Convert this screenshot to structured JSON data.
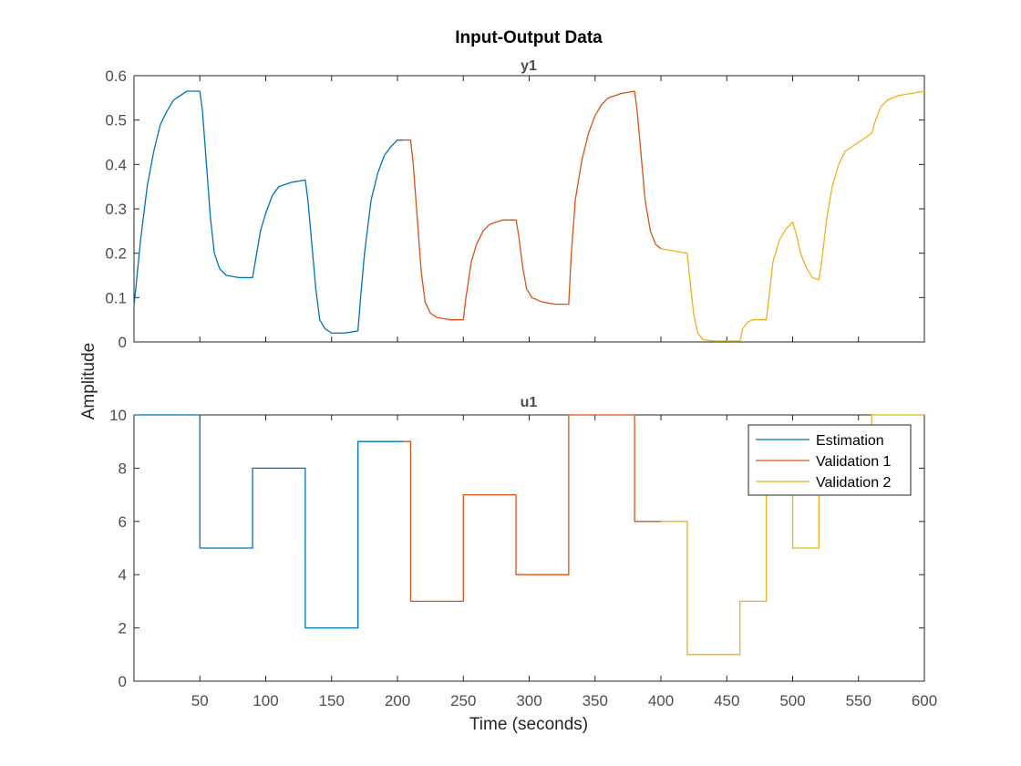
{
  "chart_data": {
    "type": "line",
    "title": "Input-Output Data",
    "xlabel": "Time (seconds)",
    "ylabel": "Amplitude",
    "legend": {
      "placement": "top-right of lower panel",
      "entries": [
        "Estimation",
        "Validation 1",
        "Validation 2"
      ]
    },
    "series_colors": {
      "Estimation": "#0072BD",
      "Validation 1": "#D95319",
      "Validation 2": "#EDB120"
    },
    "grid": false,
    "panels": [
      {
        "name": "y1",
        "xlim": [
          0,
          600
        ],
        "ylim": [
          0,
          0.6
        ],
        "xticks": [
          50,
          100,
          150,
          200,
          250,
          300,
          350,
          400,
          450,
          500,
          550,
          600
        ],
        "yticks": [
          0,
          0.1,
          0.2,
          0.3,
          0.4,
          0.5,
          0.6
        ],
        "ytick_labels": [
          "0",
          "0.1",
          "0.2",
          "0.3",
          "0.4",
          "0.5",
          "0.6"
        ],
        "show_xtick_labels": false,
        "series": [
          {
            "name": "Estimation",
            "points": [
              [
                0,
                0.08
              ],
              [
                5,
                0.23
              ],
              [
                10,
                0.35
              ],
              [
                15,
                0.43
              ],
              [
                20,
                0.49
              ],
              [
                25,
                0.52
              ],
              [
                30,
                0.545
              ],
              [
                35,
                0.555
              ],
              [
                40,
                0.565
              ],
              [
                45,
                0.565
              ],
              [
                50,
                0.565
              ],
              [
                52,
                0.52
              ],
              [
                55,
                0.4
              ],
              [
                58,
                0.28
              ],
              [
                61,
                0.2
              ],
              [
                65,
                0.165
              ],
              [
                70,
                0.15
              ],
              [
                80,
                0.145
              ],
              [
                90,
                0.145
              ],
              [
                92,
                0.18
              ],
              [
                96,
                0.25
              ],
              [
                100,
                0.29
              ],
              [
                105,
                0.33
              ],
              [
                110,
                0.35
              ],
              [
                120,
                0.36
              ],
              [
                130,
                0.365
              ],
              [
                132,
                0.32
              ],
              [
                135,
                0.22
              ],
              [
                138,
                0.12
              ],
              [
                141,
                0.05
              ],
              [
                145,
                0.03
              ],
              [
                150,
                0.02
              ],
              [
                160,
                0.02
              ],
              [
                170,
                0.025
              ],
              [
                172,
                0.1
              ],
              [
                175,
                0.2
              ],
              [
                180,
                0.32
              ],
              [
                185,
                0.38
              ],
              [
                190,
                0.42
              ],
              [
                195,
                0.44
              ],
              [
                200,
                0.455
              ],
              [
                205,
                0.455
              ]
            ]
          },
          {
            "name": "Validation 1",
            "points": [
              [
                205,
                0.455
              ],
              [
                210,
                0.455
              ],
              [
                212,
                0.4
              ],
              [
                215,
                0.28
              ],
              [
                218,
                0.16
              ],
              [
                221,
                0.09
              ],
              [
                225,
                0.065
              ],
              [
                230,
                0.055
              ],
              [
                240,
                0.05
              ],
              [
                250,
                0.05
              ],
              [
                252,
                0.1
              ],
              [
                256,
                0.18
              ],
              [
                260,
                0.22
              ],
              [
                265,
                0.25
              ],
              [
                270,
                0.265
              ],
              [
                280,
                0.275
              ],
              [
                290,
                0.275
              ],
              [
                292,
                0.24
              ],
              [
                295,
                0.17
              ],
              [
                298,
                0.12
              ],
              [
                302,
                0.1
              ],
              [
                310,
                0.09
              ],
              [
                320,
                0.085
              ],
              [
                330,
                0.085
              ],
              [
                332,
                0.2
              ],
              [
                335,
                0.32
              ],
              [
                340,
                0.41
              ],
              [
                345,
                0.47
              ],
              [
                350,
                0.51
              ],
              [
                355,
                0.535
              ],
              [
                360,
                0.55
              ],
              [
                370,
                0.56
              ],
              [
                380,
                0.565
              ],
              [
                382,
                0.52
              ],
              [
                385,
                0.42
              ],
              [
                388,
                0.32
              ],
              [
                392,
                0.25
              ],
              [
                396,
                0.22
              ],
              [
                400,
                0.21
              ]
            ]
          },
          {
            "name": "Validation 2",
            "points": [
              [
                400,
                0.21
              ],
              [
                410,
                0.205
              ],
              [
                420,
                0.2
              ],
              [
                422,
                0.14
              ],
              [
                425,
                0.06
              ],
              [
                428,
                0.02
              ],
              [
                432,
                0.005
              ],
              [
                440,
                0.002
              ],
              [
                450,
                0.002
              ],
              [
                460,
                0.002
              ],
              [
                462,
                0.03
              ],
              [
                466,
                0.045
              ],
              [
                470,
                0.05
              ],
              [
                480,
                0.05
              ],
              [
                482,
                0.1
              ],
              [
                485,
                0.18
              ],
              [
                490,
                0.23
              ],
              [
                495,
                0.255
              ],
              [
                500,
                0.27
              ],
              [
                503,
                0.24
              ],
              [
                506,
                0.2
              ],
              [
                510,
                0.17
              ],
              [
                515,
                0.145
              ],
              [
                520,
                0.14
              ],
              [
                522,
                0.18
              ],
              [
                526,
                0.28
              ],
              [
                530,
                0.35
              ],
              [
                535,
                0.4
              ],
              [
                540,
                0.43
              ],
              [
                545,
                0.44
              ],
              [
                550,
                0.45
              ],
              [
                555,
                0.46
              ],
              [
                560,
                0.47
              ],
              [
                563,
                0.5
              ],
              [
                567,
                0.53
              ],
              [
                572,
                0.545
              ],
              [
                580,
                0.555
              ],
              [
                590,
                0.56
              ],
              [
                600,
                0.565
              ]
            ]
          }
        ]
      },
      {
        "name": "u1",
        "xlim": [
          0,
          600
        ],
        "ylim": [
          0,
          10
        ],
        "xticks": [
          50,
          100,
          150,
          200,
          250,
          300,
          350,
          400,
          450,
          500,
          550,
          600
        ],
        "xtick_labels": [
          "50",
          "100",
          "150",
          "200",
          "250",
          "300",
          "350",
          "400",
          "450",
          "500",
          "550",
          "600"
        ],
        "yticks": [
          0,
          2,
          4,
          6,
          8,
          10
        ],
        "ytick_labels": [
          "0",
          "2",
          "4",
          "6",
          "8",
          "10"
        ],
        "show_xtick_labels": true,
        "series": [
          {
            "name": "Estimation",
            "steps": [
              [
                0,
                50,
                10
              ],
              [
                50,
                90,
                5
              ],
              [
                90,
                130,
                8
              ],
              [
                130,
                170,
                2
              ],
              [
                170,
                205,
                9
              ]
            ]
          },
          {
            "name": "Validation 1",
            "steps": [
              [
                205,
                210,
                9
              ],
              [
                210,
                250,
                3
              ],
              [
                250,
                290,
                7
              ],
              [
                290,
                330,
                4
              ],
              [
                330,
                380,
                10
              ],
              [
                380,
                400,
                6
              ]
            ]
          },
          {
            "name": "Validation 2",
            "steps": [
              [
                400,
                420,
                6
              ],
              [
                420,
                460,
                1
              ],
              [
                460,
                480,
                3
              ],
              [
                480,
                500,
                7
              ],
              [
                500,
                520,
                5
              ],
              [
                520,
                560,
                7
              ],
              [
                560,
                600,
                10
              ]
            ]
          }
        ]
      }
    ]
  }
}
